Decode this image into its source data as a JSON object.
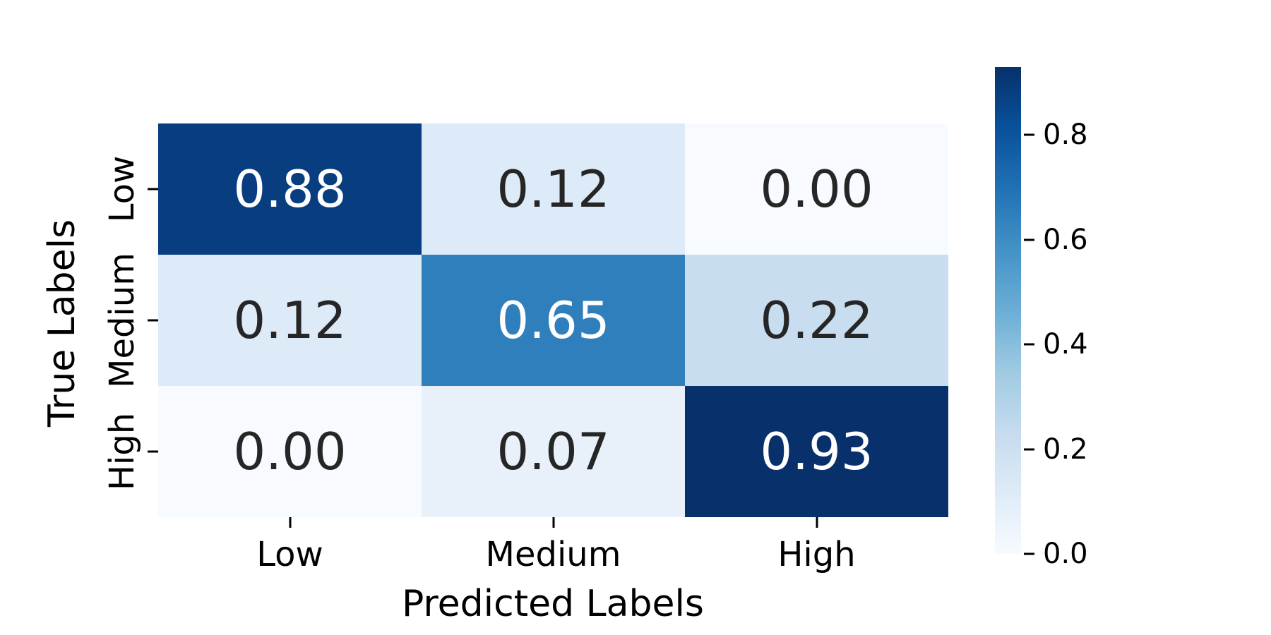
{
  "figure": {
    "background": "#ffffff",
    "text_color": "#000000"
  },
  "chart_data": {
    "type": "heatmap",
    "title": "",
    "xlabel": "Predicted Labels",
    "ylabel": "True Labels",
    "x_categories": [
      "Low",
      "Medium",
      "High"
    ],
    "y_categories": [
      "Low",
      "Medium",
      "High"
    ],
    "values": [
      [
        0.88,
        0.12,
        0.0
      ],
      [
        0.12,
        0.65,
        0.22
      ],
      [
        0.0,
        0.07,
        0.93
      ]
    ],
    "cell_labels": [
      [
        "0.88",
        "0.12",
        "0.00"
      ],
      [
        "0.12",
        "0.65",
        "0.22"
      ],
      [
        "0.00",
        "0.07",
        "0.93"
      ]
    ],
    "cell_colors": [
      [
        "#083e80",
        "#ddeaf7",
        "#f7fbff"
      ],
      [
        "#ddeaf7",
        "#2f7fbc",
        "#c9ddf0"
      ],
      [
        "#f7fbff",
        "#e8f1fa",
        "#08306b"
      ]
    ],
    "cell_text_colors": [
      [
        "#ffffff",
        "#262626",
        "#262626"
      ],
      [
        "#262626",
        "#ffffff",
        "#262626"
      ],
      [
        "#262626",
        "#262626",
        "#ffffff"
      ]
    ],
    "colormap": "Blues",
    "vmin": 0.0,
    "vmax": 0.93,
    "grid": false,
    "legend_position": "right-colorbar",
    "colorbar": {
      "ticks": [
        {
          "label": "0.8",
          "value": 0.8
        },
        {
          "label": "0.6",
          "value": 0.6
        },
        {
          "label": "0.4",
          "value": 0.4
        },
        {
          "label": "0.2",
          "value": 0.2
        },
        {
          "label": "0.0",
          "value": 0.0
        }
      ],
      "gradient_stops_top_to_bottom": [
        "#08306b",
        "#08519c",
        "#2171b5",
        "#4292c6",
        "#6baed6",
        "#9ecae1",
        "#c6dbef",
        "#deebf7",
        "#f7fbff"
      ]
    }
  }
}
